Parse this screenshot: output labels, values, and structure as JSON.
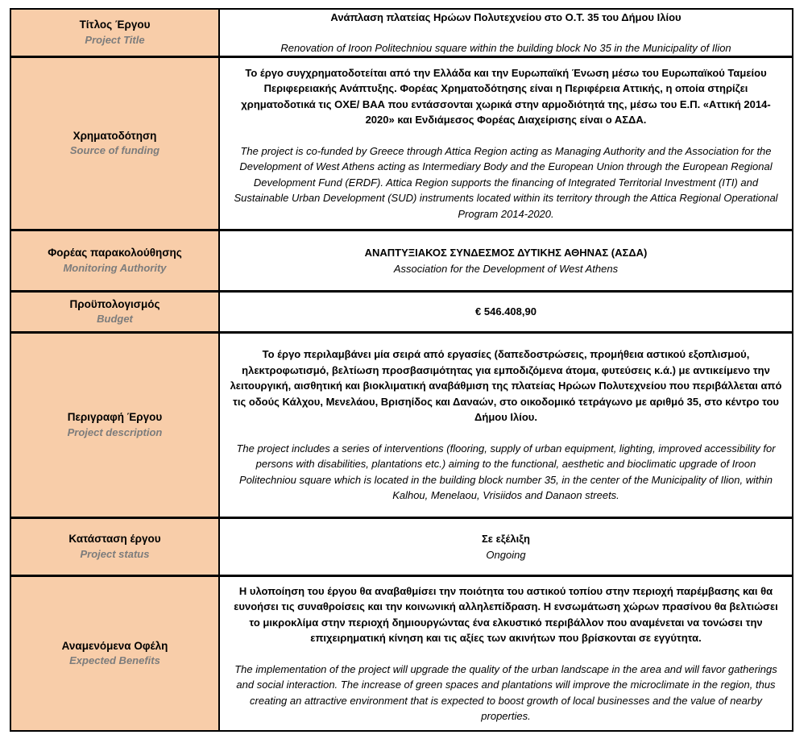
{
  "colors": {
    "label_background": "#F8CDA9",
    "label_english_text": "#7C7C7C",
    "border": "#000000"
  },
  "rows": [
    {
      "id": "project-title",
      "label_el": "Τίτλος Έργου",
      "label_en": "Project Title",
      "content_el": "Ανάπλαση πλατείας Ηρώων Πολυτεχνείου στο Ο.Τ. 35 του Δήμου Ιλίου",
      "content_en": "Renovation of Iroon Politechniou square within the building block No 35 in the Municipality of Ilion"
    },
    {
      "id": "source-of-funding",
      "label_el": "Χρηματοδότηση",
      "label_en": "Source of funding",
      "content_el": "Το έργο συγχρηματοδοτείται από την Ελλάδα και την Ευρωπαϊκή Ένωση μέσω του Ευρωπαϊκού Ταμείου Περιφερειακής Ανάπτυξης. Φορέας Χρηματοδότησης είναι η Περιφέρεια Αττικής, η οποία στηρίζει χρηματοδοτικά τις ΟΧΕ/ ΒΑΑ που εντάσσονται χωρικά στην αρμοδιότητά της, μέσω του Ε.Π. «Αττική 2014-2020» και Ενδιάμεσος Φορέας Διαχείρισης είναι ο ΑΣΔΑ.",
      "content_en": "The project is co-funded by Greece through Attica Region acting as Managing Authority and the Association for the Development of West Athens acting as Intermediary Body and the European Union through the European Regional Development Fund (ERDF). Attica Region supports the financing of Integrated Territorial Investment (ITI) and Sustainable Urban Development (SUD) instruments located within its territory through the Attica Regional Operational Program 2014-2020."
    },
    {
      "id": "monitoring-authority",
      "label_el": "Φορέας παρακολούθησης",
      "label_en": "Monitoring Authority",
      "content_el": "ΑΝΑΠΤΥΞΙΑΚΟΣ ΣΥΝΔΕΣΜΟΣ ΔΥΤΙΚΗΣ ΑΘΗΝΑΣ (ΑΣΔΑ)",
      "content_en": "Association for the Development of West Athens"
    },
    {
      "id": "budget",
      "label_el": "Προϋπολογισμός",
      "label_en": "Budget",
      "content_el": "€ 546.408,90",
      "content_en": ""
    },
    {
      "id": "project-description",
      "label_el": "Περιγραφή Έργου",
      "label_en": "Project description",
      "content_el": "Το έργο περιλαμβάνει μία σειρά από εργασίες (δαπεδοστρώσεις, προμήθεια αστικού εξοπλισμού, ηλεκτροφωτισμό, βελτίωση προσβασιμότητας για εμποδιζόμενα άτομα, φυτεύσεις κ.ά.) με αντικείμενο την λειτουργική, αισθητική και βιοκλιματική αναβάθμιση της πλατείας Ηρώων Πολυτεχνείου που περιβάλλεται από τις οδούς Κάλχου, Μενελάου, Βρισηίδος και Δαναών, στο οικοδομικό τετράγωνο με αριθμό 35, στο κέντρο του Δήμου Ιλίου.",
      "content_en": "The project includes a series of interventions (flooring, supply of urban equipment, lighting, improved accessibility for persons with disabilities, plantations etc.) aiming to the functional, aesthetic and bioclimatic upgrade of Iroon Politechniou square which is located in the building block number 35, in the center of the Municipality of Ilion, within Kalhou, Menelaou, Vrisiidos and Danaon streets."
    },
    {
      "id": "project-status",
      "label_el": "Κατάσταση έργου",
      "label_en": "Project status",
      "content_el": "Σε εξέλιξη",
      "content_en": "Ongoing"
    },
    {
      "id": "expected-benefits",
      "label_el": "Αναμενόμενα Οφέλη",
      "label_en": "Expected Benefits",
      "content_el": "Η υλοποίηση του έργου θα αναβαθμίσει την ποιότητα του αστικού τοπίου στην περιοχή παρέμβασης και θα ευνοήσει τις συναθροίσεις και την κοινωνική αλληλεπίδραση. Η ενσωμάτωση χώρων πρασίνου θα βελτιώσει το μικροκλίμα στην περιοχή δημιουργώντας ένα ελκυστικό περιβάλλον που αναμένεται να τονώσει την επιχειρηματική κίνηση και τις αξίες των ακινήτων που βρίσκονται σε εγγύτητα.",
      "content_en": "The implementation of the project will upgrade the quality of the urban landscape in the area and will favor gatherings and social interaction. The increase of green spaces and plantations will improve the microclimate in the region, thus creating an attractive environment that is expected to boost growth of local businesses and the value of nearby properties."
    }
  ]
}
